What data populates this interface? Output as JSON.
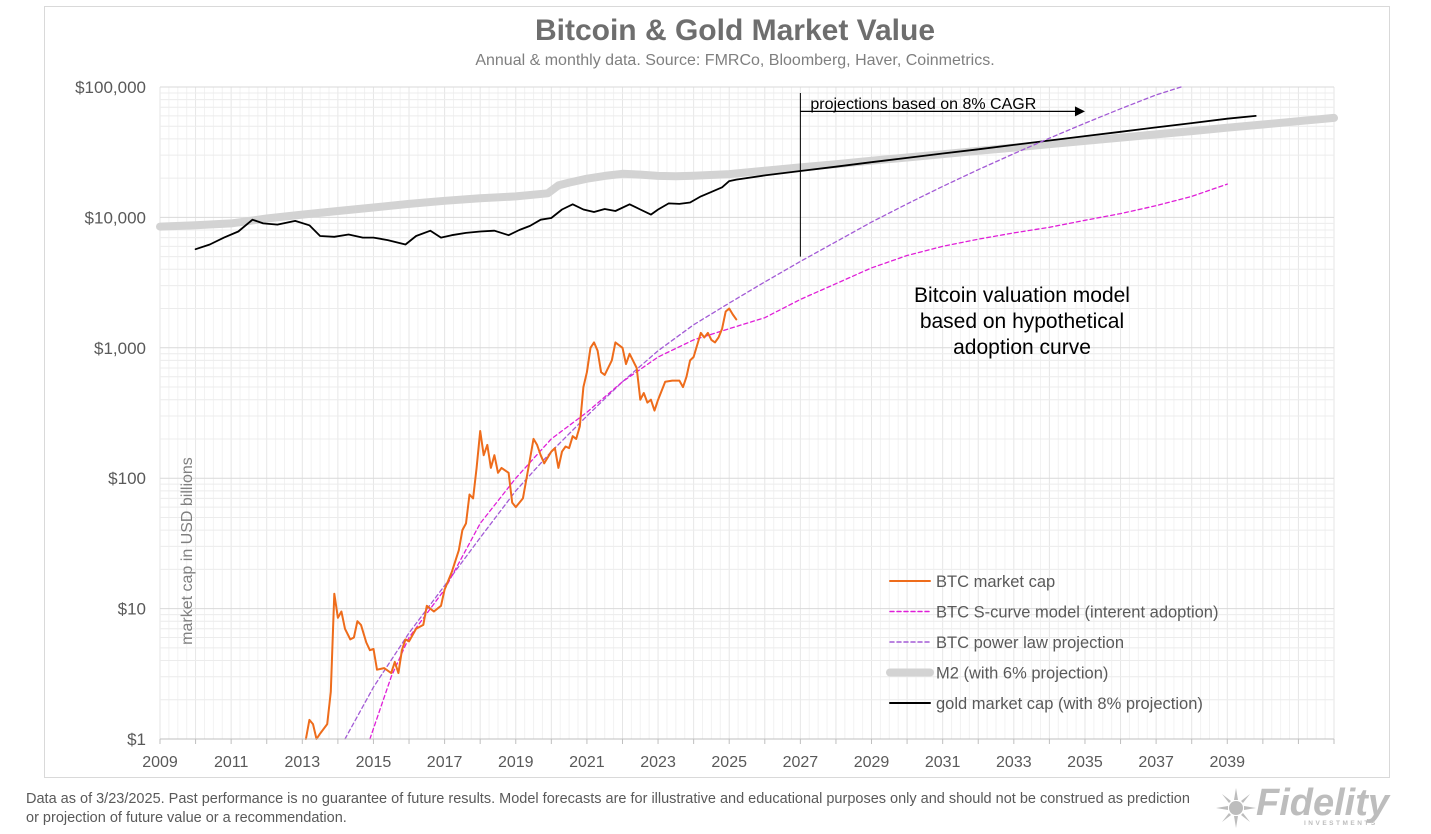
{
  "chart_data": {
    "type": "line",
    "title": "Bitcoin & Gold Market Value",
    "subtitle": "Annual & monthly data.  Source: FMRCo, Bloomberg, Haver,  Coinmetrics.",
    "ylabel": "market cap in USD billions",
    "xlabel": "",
    "yscale": "log",
    "ylim": [
      1,
      100000
    ],
    "xlim": [
      2009,
      2042
    ],
    "y_ticks": [
      {
        "value": 1,
        "label": "$1"
      },
      {
        "value": 10,
        "label": "$10"
      },
      {
        "value": 100,
        "label": "$100"
      },
      {
        "value": 1000,
        "label": "$1,000"
      },
      {
        "value": 10000,
        "label": "$10,000"
      },
      {
        "value": 100000,
        "label": "$100,000"
      }
    ],
    "x_ticks": [
      2009,
      2011,
      2013,
      2015,
      2017,
      2019,
      2021,
      2023,
      2025,
      2027,
      2029,
      2031,
      2033,
      2035,
      2037,
      2039
    ],
    "grid": true,
    "legend_position": "bottom-right",
    "series": [
      {
        "name": "M2 (with 6% projection)",
        "color": "#d3d3d3",
        "style": "thick",
        "points": [
          [
            2009,
            8500
          ],
          [
            2010,
            8700
          ],
          [
            2011,
            9000
          ],
          [
            2012,
            9800
          ],
          [
            2013,
            10500
          ],
          [
            2014,
            11200
          ],
          [
            2015,
            11900
          ],
          [
            2016,
            12700
          ],
          [
            2017,
            13400
          ],
          [
            2018,
            14000
          ],
          [
            2019,
            14500
          ],
          [
            2019.9,
            15300
          ],
          [
            2020.2,
            17600
          ],
          [
            2020.5,
            18500
          ],
          [
            2021,
            19800
          ],
          [
            2021.5,
            20800
          ],
          [
            2022,
            21600
          ],
          [
            2022.5,
            21300
          ],
          [
            2023,
            20800
          ],
          [
            2023.5,
            20700
          ],
          [
            2024,
            20900
          ],
          [
            2025,
            21500
          ],
          [
            2026,
            22800
          ],
          [
            2027,
            24200
          ],
          [
            2028,
            25600
          ],
          [
            2029,
            27200
          ],
          [
            2030,
            28800
          ],
          [
            2031,
            30500
          ],
          [
            2032,
            32400
          ],
          [
            2033,
            34300
          ],
          [
            2034,
            36400
          ],
          [
            2035,
            38600
          ],
          [
            2036,
            40900
          ],
          [
            2037,
            43300
          ],
          [
            2038,
            45900
          ],
          [
            2039,
            48700
          ],
          [
            2040,
            51600
          ],
          [
            2041,
            54700
          ],
          [
            2042,
            57900
          ]
        ]
      },
      {
        "name": "gold market cap (with 8% projection)",
        "color": "#000000",
        "style": "solid",
        "points": [
          [
            2010,
            5700
          ],
          [
            2010.4,
            6200
          ],
          [
            2010.8,
            7000
          ],
          [
            2011.2,
            7800
          ],
          [
            2011.6,
            9600
          ],
          [
            2011.9,
            9000
          ],
          [
            2012.3,
            8800
          ],
          [
            2012.8,
            9400
          ],
          [
            2013.2,
            8700
          ],
          [
            2013.5,
            7200
          ],
          [
            2013.9,
            7100
          ],
          [
            2014.3,
            7400
          ],
          [
            2014.7,
            7000
          ],
          [
            2015,
            7000
          ],
          [
            2015.4,
            6700
          ],
          [
            2015.9,
            6200
          ],
          [
            2016.2,
            7200
          ],
          [
            2016.6,
            7900
          ],
          [
            2016.9,
            7000
          ],
          [
            2017.2,
            7300
          ],
          [
            2017.6,
            7600
          ],
          [
            2018,
            7800
          ],
          [
            2018.4,
            7900
          ],
          [
            2018.8,
            7300
          ],
          [
            2019.1,
            8000
          ],
          [
            2019.4,
            8600
          ],
          [
            2019.7,
            9600
          ],
          [
            2020,
            9900
          ],
          [
            2020.3,
            11500
          ],
          [
            2020.6,
            12600
          ],
          [
            2020.9,
            11500
          ],
          [
            2021.2,
            11000
          ],
          [
            2021.5,
            11600
          ],
          [
            2021.8,
            11200
          ],
          [
            2022.2,
            12600
          ],
          [
            2022.5,
            11500
          ],
          [
            2022.8,
            10500
          ],
          [
            2023,
            11500
          ],
          [
            2023.3,
            12800
          ],
          [
            2023.6,
            12700
          ],
          [
            2023.9,
            13000
          ],
          [
            2024.2,
            14500
          ],
          [
            2024.5,
            15700
          ],
          [
            2024.8,
            17000
          ],
          [
            2025,
            19000
          ],
          [
            2025.2,
            19500
          ],
          [
            2026,
            21000
          ],
          [
            2027,
            22700
          ],
          [
            2028,
            24500
          ],
          [
            2029,
            26500
          ],
          [
            2030,
            28600
          ],
          [
            2031,
            30900
          ],
          [
            2032,
            33300
          ],
          [
            2033,
            36000
          ],
          [
            2034,
            38900
          ],
          [
            2035,
            42000
          ],
          [
            2036,
            45300
          ],
          [
            2037,
            49000
          ],
          [
            2038,
            52900
          ],
          [
            2039,
            57100
          ],
          [
            2039.8,
            60000
          ]
        ]
      },
      {
        "name": "BTC power law projection",
        "color": "#a35bd6",
        "style": "dashed",
        "points": [
          [
            2014.2,
            1
          ],
          [
            2015,
            2.5
          ],
          [
            2016,
            6.5
          ],
          [
            2017,
            15
          ],
          [
            2018,
            35
          ],
          [
            2019,
            80
          ],
          [
            2020,
            160
          ],
          [
            2021,
            300
          ],
          [
            2022,
            550
          ],
          [
            2023,
            950
          ],
          [
            2024,
            1500
          ],
          [
            2025,
            2200
          ],
          [
            2026,
            3200
          ],
          [
            2027,
            4600
          ],
          [
            2028,
            6500
          ],
          [
            2029,
            9200
          ],
          [
            2030,
            12700
          ],
          [
            2031,
            17300
          ],
          [
            2032,
            23200
          ],
          [
            2033,
            30800
          ],
          [
            2034,
            40500
          ],
          [
            2035,
            52800
          ],
          [
            2036,
            68000
          ],
          [
            2037,
            87000
          ],
          [
            2037.7,
            100000
          ]
        ]
      },
      {
        "name": "BTC S-curve model (interent adoption)",
        "color": "#e01fd8",
        "style": "dashed",
        "points": [
          [
            2014.9,
            1
          ],
          [
            2015.5,
            3
          ],
          [
            2016,
            6
          ],
          [
            2017,
            14
          ],
          [
            2018,
            45
          ],
          [
            2019,
            100
          ],
          [
            2020,
            200
          ],
          [
            2021,
            320
          ],
          [
            2022,
            550
          ],
          [
            2023,
            850
          ],
          [
            2024,
            1150
          ],
          [
            2025,
            1400
          ],
          [
            2026,
            1700
          ],
          [
            2027,
            2350
          ],
          [
            2028,
            3100
          ],
          [
            2029,
            4100
          ],
          [
            2030,
            5100
          ],
          [
            2031,
            6000
          ],
          [
            2032,
            6800
          ],
          [
            2033,
            7600
          ],
          [
            2034,
            8400
          ],
          [
            2035,
            9500
          ],
          [
            2036,
            10700
          ],
          [
            2037,
            12300
          ],
          [
            2038,
            14500
          ],
          [
            2039,
            18000
          ]
        ]
      },
      {
        "name": "BTC market cap",
        "color": "#ee6c1b",
        "style": "solid",
        "points": [
          [
            2013.1,
            1
          ],
          [
            2013.2,
            1.4
          ],
          [
            2013.3,
            1.3
          ],
          [
            2013.4,
            1
          ],
          [
            2013.5,
            1.1
          ],
          [
            2013.7,
            1.3
          ],
          [
            2013.8,
            2.3
          ],
          [
            2013.9,
            13
          ],
          [
            2014,
            8.5
          ],
          [
            2014.1,
            9.5
          ],
          [
            2014.2,
            7
          ],
          [
            2014.35,
            5.8
          ],
          [
            2014.45,
            6
          ],
          [
            2014.55,
            8
          ],
          [
            2014.65,
            7.5
          ],
          [
            2014.8,
            5.5
          ],
          [
            2014.9,
            4.8
          ],
          [
            2015,
            4.9
          ],
          [
            2015.1,
            3.4
          ],
          [
            2015.3,
            3.5
          ],
          [
            2015.5,
            3.2
          ],
          [
            2015.6,
            3.9
          ],
          [
            2015.7,
            3.2
          ],
          [
            2015.8,
            4.8
          ],
          [
            2015.9,
            5.8
          ],
          [
            2016,
            5.6
          ],
          [
            2016.2,
            7
          ],
          [
            2016.4,
            7.5
          ],
          [
            2016.5,
            10.5
          ],
          [
            2016.7,
            9.5
          ],
          [
            2016.9,
            10.5
          ],
          [
            2017,
            14
          ],
          [
            2017.2,
            19
          ],
          [
            2017.4,
            28
          ],
          [
            2017.5,
            40
          ],
          [
            2017.6,
            45
          ],
          [
            2017.7,
            75
          ],
          [
            2017.8,
            70
          ],
          [
            2017.9,
            120
          ],
          [
            2018,
            230
          ],
          [
            2018.1,
            150
          ],
          [
            2018.2,
            180
          ],
          [
            2018.3,
            120
          ],
          [
            2018.4,
            150
          ],
          [
            2018.5,
            110
          ],
          [
            2018.6,
            120
          ],
          [
            2018.8,
            110
          ],
          [
            2018.9,
            65
          ],
          [
            2019,
            60
          ],
          [
            2019.2,
            70
          ],
          [
            2019.4,
            140
          ],
          [
            2019.5,
            200
          ],
          [
            2019.6,
            180
          ],
          [
            2019.7,
            150
          ],
          [
            2019.8,
            130
          ],
          [
            2020,
            160
          ],
          [
            2020.1,
            170
          ],
          [
            2020.2,
            120
          ],
          [
            2020.3,
            160
          ],
          [
            2020.4,
            175
          ],
          [
            2020.5,
            170
          ],
          [
            2020.6,
            210
          ],
          [
            2020.7,
            200
          ],
          [
            2020.8,
            250
          ],
          [
            2020.9,
            500
          ],
          [
            2021,
            650
          ],
          [
            2021.1,
            1000
          ],
          [
            2021.2,
            1100
          ],
          [
            2021.3,
            950
          ],
          [
            2021.4,
            650
          ],
          [
            2021.5,
            620
          ],
          [
            2021.7,
            800
          ],
          [
            2021.8,
            1100
          ],
          [
            2022,
            1000
          ],
          [
            2022.1,
            750
          ],
          [
            2022.2,
            900
          ],
          [
            2022.4,
            700
          ],
          [
            2022.5,
            400
          ],
          [
            2022.6,
            450
          ],
          [
            2022.7,
            380
          ],
          [
            2022.8,
            400
          ],
          [
            2022.9,
            330
          ],
          [
            2023,
            400
          ],
          [
            2023.2,
            550
          ],
          [
            2023.4,
            560
          ],
          [
            2023.6,
            560
          ],
          [
            2023.7,
            500
          ],
          [
            2023.8,
            600
          ],
          [
            2023.9,
            800
          ],
          [
            2024,
            850
          ],
          [
            2024.2,
            1300
          ],
          [
            2024.3,
            1200
          ],
          [
            2024.4,
            1300
          ],
          [
            2024.5,
            1150
          ],
          [
            2024.6,
            1100
          ],
          [
            2024.7,
            1200
          ],
          [
            2024.8,
            1400
          ],
          [
            2024.9,
            1900
          ],
          [
            2025,
            2000
          ],
          [
            2025.1,
            1800
          ],
          [
            2025.2,
            1650
          ]
        ]
      }
    ],
    "annotations": [
      {
        "text": "projections based on 8% CAGR",
        "x_start": 2027,
        "x_end": 2035,
        "y": 65000
      },
      {
        "text": "Bitcoin valuation model based on hypothetical adoption curve"
      }
    ]
  },
  "annotation_lines": [
    "Bitcoin valuation model",
    "based on hypothetical",
    "adoption curve"
  ],
  "projection_label": "projections based on 8% CAGR",
  "footer": {
    "disclaimer": "Data as of 3/23/2025. Past performance is no guarantee of future results. Model forecasts are for illustrative and educational purposes only and should not be construed as prediction or projection of future value or a recommendation."
  },
  "logo": {
    "name": "Fidelity",
    "sub": "INVESTMENTS"
  },
  "colors": {
    "text_gray": "#595959",
    "grid": "#ececec",
    "axis": "#bfbfbf"
  }
}
